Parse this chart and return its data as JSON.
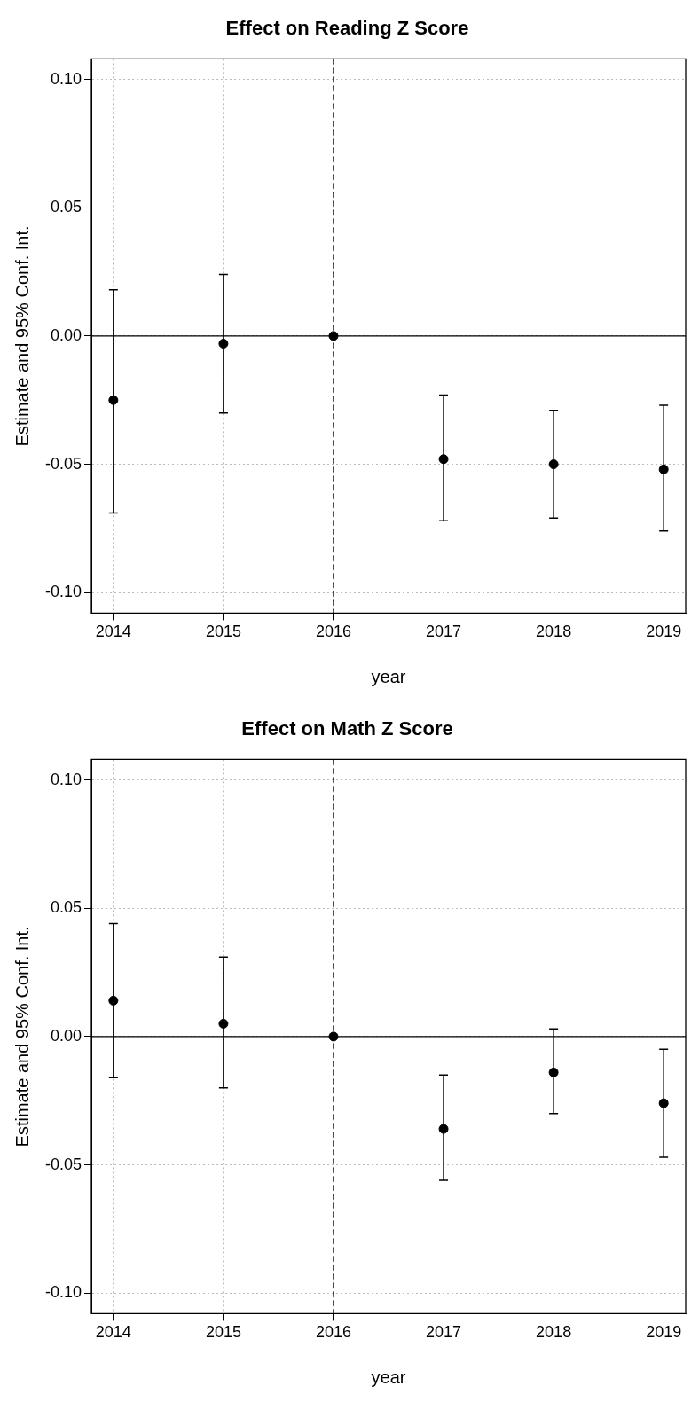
{
  "chart_data": [
    {
      "type": "scatter",
      "title": "Effect on Reading Z Score",
      "xlabel": "year",
      "ylabel": "Estimate and 95% Conf. Int.",
      "x": [
        2014,
        2015,
        2016,
        2017,
        2018,
        2019
      ],
      "series": [
        {
          "color": "#000000",
          "values": [
            -0.025,
            -0.003,
            0,
            -0.048,
            -0.05,
            -0.052
          ],
          "errors": [
            [
              -0.069,
              0.018
            ],
            [
              -0.03,
              0.024
            ],
            null,
            [
              -0.072,
              -0.023
            ],
            [
              -0.071,
              -0.029
            ],
            [
              -0.076,
              -0.027
            ]
          ]
        }
      ],
      "xlim": [
        2013.8,
        2019.2
      ],
      "xticks": [
        2014,
        2015,
        2016,
        2017,
        2018,
        2019
      ],
      "ylim": [
        -0.108,
        0.108
      ],
      "yticks": [
        {
          "value": -0.1,
          "label": "-0.10"
        },
        {
          "value": -0.05,
          "label": "-0.05"
        },
        {
          "value": 0,
          "label": "0.00"
        },
        {
          "value": 0.05,
          "label": "0.05"
        },
        {
          "value": 0.1,
          "label": "0.10"
        }
      ],
      "grid": true,
      "marker": "circle",
      "legend": false,
      "ref_lines": [
        {
          "axis": "y",
          "value": 0,
          "line_style": "solid",
          "color": "#000000"
        },
        {
          "axis": "x",
          "value": 2016,
          "line_style": "dashed",
          "color": "#000000"
        }
      ]
    },
    {
      "type": "scatter",
      "title": "Effect on Math Z Score",
      "xlabel": "year",
      "ylabel": "Estimate and 95% Conf. Int.",
      "x": [
        2014,
        2015,
        2016,
        2017,
        2018,
        2019
      ],
      "series": [
        {
          "color": "#000000",
          "values": [
            0.014,
            0.005,
            0,
            -0.036,
            -0.014,
            -0.026
          ],
          "errors": [
            [
              -0.016,
              0.044
            ],
            [
              -0.02,
              0.031
            ],
            null,
            [
              -0.056,
              -0.015
            ],
            [
              -0.03,
              0.003
            ],
            [
              -0.047,
              -0.005
            ]
          ]
        }
      ],
      "xlim": [
        2013.8,
        2019.2
      ],
      "xticks": [
        2014,
        2015,
        2016,
        2017,
        2018,
        2019
      ],
      "ylim": [
        -0.108,
        0.108
      ],
      "yticks": [
        {
          "value": -0.1,
          "label": "-0.10"
        },
        {
          "value": -0.05,
          "label": "-0.05"
        },
        {
          "value": 0,
          "label": "0.00"
        },
        {
          "value": 0.05,
          "label": "0.05"
        },
        {
          "value": 0.1,
          "label": "0.10"
        }
      ],
      "grid": true,
      "marker": "circle",
      "legend": false,
      "ref_lines": [
        {
          "axis": "y",
          "value": 0,
          "line_style": "solid",
          "color": "#000000"
        },
        {
          "axis": "x",
          "value": 2016,
          "line_style": "dashed",
          "color": "#000000"
        }
      ]
    }
  ]
}
